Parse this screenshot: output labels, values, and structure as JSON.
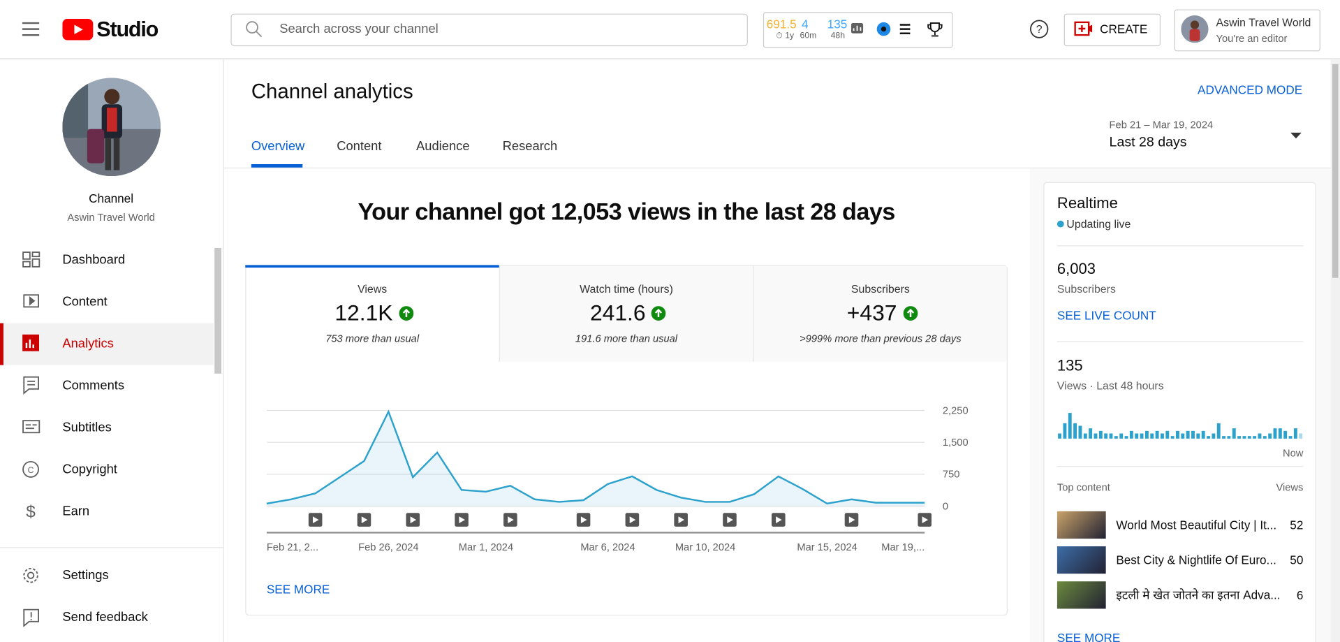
{
  "header": {
    "logo": "Studio",
    "search_placeholder": "Search across your channel",
    "stats": [
      {
        "value": "691.5",
        "sub": "1y"
      },
      {
        "value": "4",
        "sub": "60m"
      },
      {
        "value": "135",
        "sub": "48h"
      }
    ],
    "create": "CREATE",
    "account_name": "Aswin Travel World",
    "account_role": "You're an editor"
  },
  "sidebar": {
    "channel_label": "Channel",
    "channel_name": "Aswin Travel World",
    "nav": [
      "Dashboard",
      "Content",
      "Analytics",
      "Comments",
      "Subtitles",
      "Copyright",
      "Earn"
    ],
    "footer": [
      "Settings",
      "Send feedback"
    ]
  },
  "page": {
    "title": "Channel analytics",
    "advanced_mode": "ADVANCED MODE",
    "tabs": [
      "Overview",
      "Content",
      "Audience",
      "Research"
    ],
    "date_range": "Feb 21 – Mar 19, 2024",
    "period": "Last 28 days"
  },
  "summary": "Your channel got 12,053 views in the last 28 days",
  "metrics": [
    {
      "label": "Views",
      "value": "12.1K",
      "note": "753 more than usual"
    },
    {
      "label": "Watch time (hours)",
      "value": "241.6",
      "note": "191.6 more than usual"
    },
    {
      "label": "Subscribers",
      "value": "+437",
      "note": ">999% more than previous 28 days"
    }
  ],
  "chart": {
    "type": "line",
    "color": "#2ba1cb",
    "categories": [
      "Feb 21, 2...",
      null,
      null,
      null,
      null,
      "Feb 26, 2024",
      null,
      null,
      null,
      "Mar 1, 2024",
      null,
      null,
      null,
      null,
      "Mar 6, 2024",
      null,
      null,
      null,
      "Mar 10, 2024",
      null,
      null,
      null,
      null,
      "Mar 15, 2024",
      null,
      null,
      null,
      "Mar 19,..."
    ],
    "values": [
      60,
      160,
      300,
      680,
      1060,
      2220,
      680,
      1260,
      380,
      340,
      480,
      160,
      100,
      140,
      520,
      700,
      380,
      200,
      100,
      100,
      280,
      700,
      400,
      60,
      160,
      80,
      80,
      80
    ],
    "ylim": [
      0,
      2250
    ],
    "yticks": [
      0,
      750,
      {
        "value": 1500,
        "label": "1,500"
      },
      {
        "value": 2250,
        "label": "2,250"
      }
    ],
    "grid": true
  },
  "see_more": "SEE MORE",
  "realtime": {
    "title": "Realtime",
    "status": "Updating live",
    "subscribers": "6,003",
    "subscribers_label": "Subscribers",
    "live_count": "SEE LIVE COUNT",
    "views": "135",
    "views_label": "Views · Last 48 hours",
    "now_label": "Now",
    "bars": {
      "type": "bar",
      "color": "#2ba1cb",
      "values": [
        2,
        6,
        10,
        6,
        5,
        2,
        4,
        2,
        3,
        2,
        2,
        1,
        2,
        1,
        3,
        2,
        2,
        3,
        2,
        3,
        2,
        3,
        1,
        3,
        2,
        3,
        3,
        2,
        3,
        1,
        2,
        6,
        1,
        1,
        4,
        1,
        1,
        1,
        1,
        2,
        1,
        2,
        4,
        4,
        3,
        1,
        4,
        2
      ]
    },
    "top_content_label": "Top content",
    "views_column": "Views",
    "top_content": [
      {
        "title": "World Most Beautiful City | It...",
        "views": 52
      },
      {
        "title": "Best City & Nightlife Of Euro...",
        "views": 50
      },
      {
        "title": "इटली मे खेत जोतने का इतना Adva...",
        "views": 6
      }
    ],
    "see_more": "SEE MORE"
  }
}
